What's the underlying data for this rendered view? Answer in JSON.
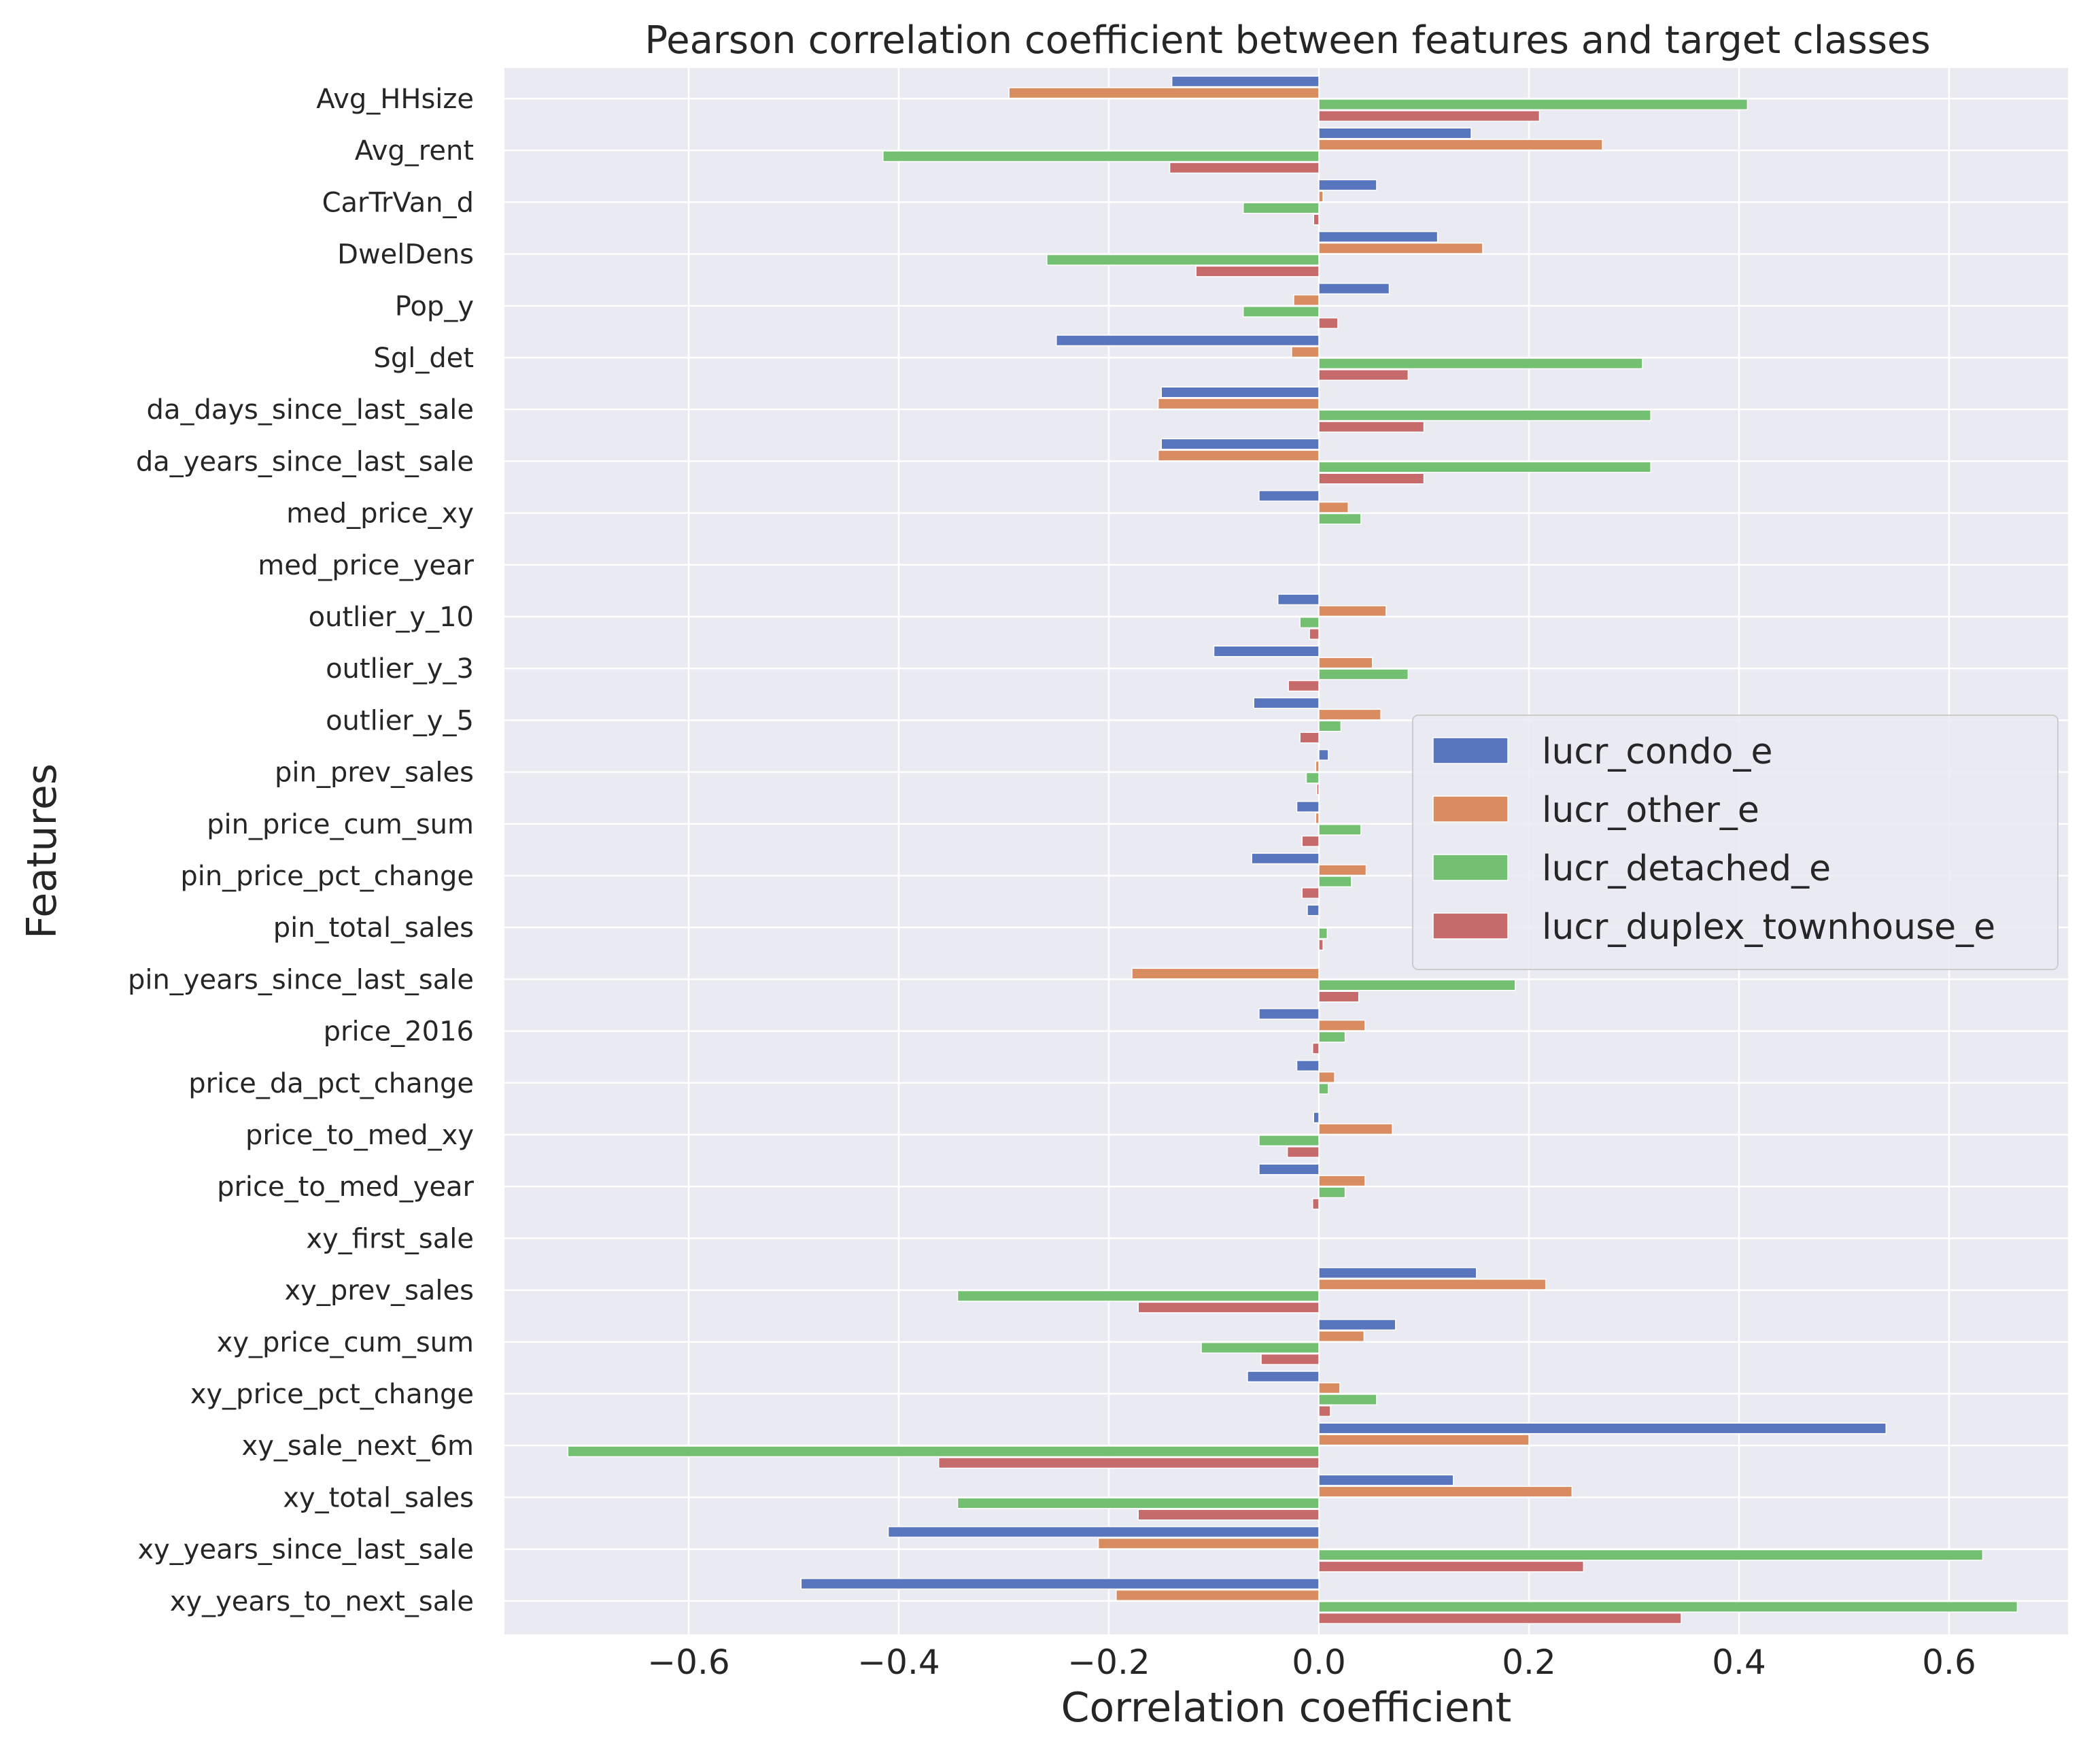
{
  "chart_data": {
    "type": "bar",
    "orientation": "horizontal",
    "title": "Pearson correlation coefficient between features and target classes",
    "xlabel": "Correlation coefficient",
    "ylabel": "Features",
    "xlim": [
      -0.79,
      0.71
    ],
    "xticks": [
      -0.6,
      -0.4,
      -0.2,
      0.0,
      0.2,
      0.4,
      0.6
    ],
    "xtick_labels": [
      "−0.6",
      "−0.4",
      "−0.2",
      "0.0",
      "0.2",
      "0.4",
      "0.6"
    ],
    "grid": true,
    "background": "#eaeaf2",
    "legend_position": "center-right",
    "categories": [
      "Avg_HHsize",
      "Avg_rent",
      "CarTrVan_d",
      "DwelDens",
      "Pop_y",
      "Sgl_det",
      "da_days_since_last_sale",
      "da_years_since_last_sale",
      "med_price_xy",
      "med_price_year",
      "outlier_y_10",
      "outlier_y_3",
      "outlier_y_5",
      "pin_prev_sales",
      "pin_price_cum_sum",
      "pin_price_pct_change",
      "pin_total_sales",
      "pin_years_since_last_sale",
      "price_2016",
      "price_da_pct_change",
      "price_to_med_xy",
      "price_to_med_year",
      "xy_first_sale",
      "xy_prev_sales",
      "xy_price_cum_sum",
      "xy_price_pct_change",
      "xy_sale_next_6m",
      "xy_total_sales",
      "xy_years_since_last_sale",
      "xy_years_to_next_sale"
    ],
    "series": [
      {
        "name": "lucr_condo_e",
        "color": "#5875be",
        "values": [
          -0.14,
          0.145,
          0.055,
          0.113,
          0.067,
          -0.25,
          -0.15,
          -0.15,
          -0.057,
          0.0,
          -0.039,
          -0.1,
          -0.062,
          0.009,
          -0.021,
          -0.064,
          -0.011,
          0.0,
          -0.057,
          -0.021,
          -0.005,
          -0.057,
          0.0,
          0.15,
          0.073,
          -0.068,
          0.54,
          0.128,
          -0.41,
          -0.493
        ]
      },
      {
        "name": "lucr_other_e",
        "color": "#d98c5f",
        "values": [
          -0.295,
          0.27,
          0.004,
          0.156,
          -0.024,
          -0.026,
          -0.153,
          -0.153,
          0.028,
          0.0,
          0.064,
          0.051,
          0.059,
          -0.003,
          -0.003,
          0.045,
          0.0,
          -0.178,
          0.044,
          0.015,
          0.07,
          0.044,
          0.0,
          0.216,
          0.043,
          0.02,
          0.2,
          0.241,
          -0.21,
          -0.193
        ]
      },
      {
        "name": "lucr_detached_e",
        "color": "#74c073",
        "values": [
          0.408,
          -0.415,
          -0.072,
          -0.259,
          -0.072,
          0.308,
          0.316,
          0.316,
          0.04,
          0.0,
          -0.018,
          0.085,
          0.021,
          -0.012,
          0.04,
          0.031,
          0.008,
          0.187,
          0.025,
          0.009,
          -0.057,
          0.025,
          0.0,
          -0.344,
          -0.112,
          0.055,
          -0.715,
          -0.344,
          0.632,
          0.665
        ]
      },
      {
        "name": "lucr_duplex_townhouse_e",
        "color": "#c66a6b",
        "values": [
          0.21,
          -0.142,
          -0.005,
          -0.117,
          0.018,
          0.085,
          0.1,
          0.1,
          0.0,
          0.0,
          -0.009,
          -0.029,
          -0.018,
          -0.002,
          -0.016,
          -0.016,
          0.004,
          0.038,
          -0.006,
          0.0,
          -0.03,
          -0.006,
          0.0,
          -0.172,
          -0.055,
          0.011,
          -0.362,
          -0.172,
          0.252,
          0.345
        ]
      }
    ]
  }
}
